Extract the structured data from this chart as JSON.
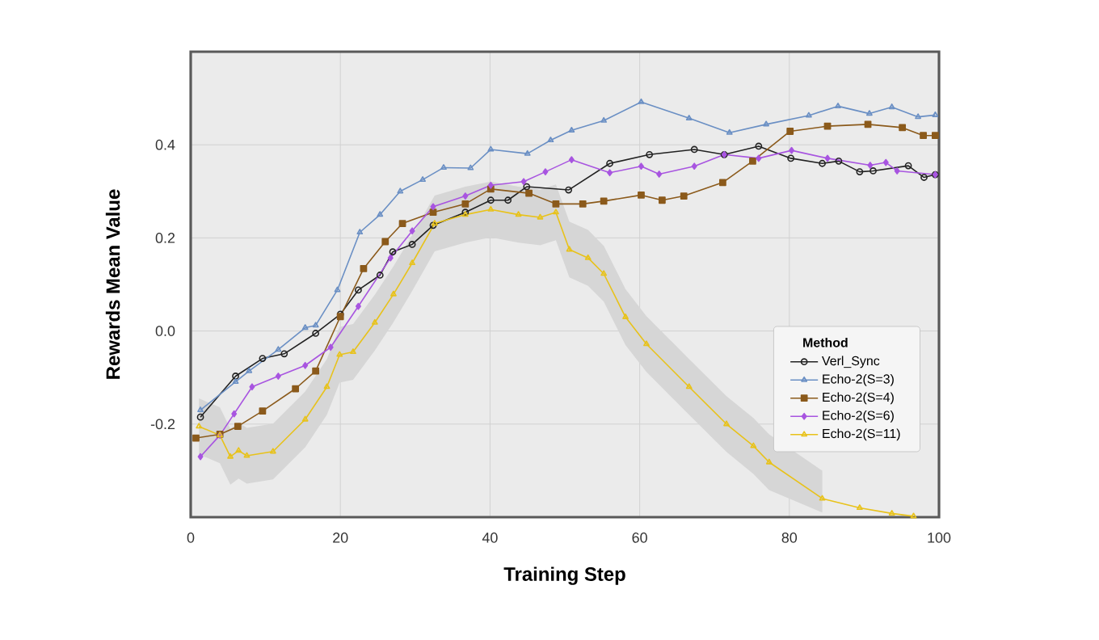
{
  "chart_data": {
    "type": "line",
    "xlabel": "Training Step",
    "ylabel": "Rewards Mean Value",
    "legend_title": "Method",
    "xlim": [
      0,
      100
    ],
    "ylim": [
      -0.4,
      0.6
    ],
    "xticks": [
      0,
      20,
      40,
      60,
      80,
      100
    ],
    "yticks": [
      -0.2,
      {
        "value": 0,
        "label": "0.0"
      },
      0.2,
      0.4
    ],
    "grid": true,
    "legend": "bottom right",
    "line_style": "solid",
    "series": [
      {
        "name": "Verl_Sync",
        "color": "#222222",
        "marker": "circle",
        "x": [
          1.3,
          6,
          9.6,
          12.5,
          16.7,
          20,
          22.4,
          25.3,
          27,
          29.6,
          32.4,
          36.7,
          40.1,
          42.4,
          44.9,
          50.5,
          56,
          61.3,
          67.3,
          71.3,
          75.9,
          80.2,
          84.4,
          86.6,
          89.4,
          91.2,
          95.9,
          98,
          99.5
        ],
        "values": [
          -0.185,
          -0.097,
          -0.059,
          -0.049,
          -0.005,
          0.036,
          0.088,
          0.12,
          0.17,
          0.186,
          0.227,
          0.255,
          0.281,
          0.281,
          0.31,
          0.303,
          0.36,
          0.379,
          0.39,
          0.379,
          0.397,
          0.371,
          0.36,
          0.365,
          0.342,
          0.344,
          0.355,
          0.33,
          0.336
        ]
      },
      {
        "name": "Echo-2(S=3)",
        "color": "#6a8fc4",
        "marker": "triangle",
        "x": [
          1.3,
          6,
          7.8,
          11.7,
          15.3,
          16.7,
          19.6,
          22.6,
          25.3,
          28,
          31,
          33.8,
          37.4,
          40.1,
          45,
          48.1,
          50.9,
          55.2,
          60.2,
          66.6,
          72,
          76.9,
          82.6,
          86.5,
          90.7,
          93.7,
          97.2,
          99.5
        ],
        "values": [
          -0.17,
          -0.109,
          -0.086,
          -0.04,
          0.007,
          0.012,
          0.088,
          0.212,
          0.25,
          0.3,
          0.325,
          0.351,
          0.35,
          0.39,
          0.381,
          0.41,
          0.431,
          0.452,
          0.492,
          0.457,
          0.426,
          0.444,
          0.463,
          0.483,
          0.467,
          0.481,
          0.46,
          0.464
        ]
      },
      {
        "name": "Echo-2(S=4)",
        "color": "#8b5a1b",
        "marker": "square",
        "x": [
          0.7,
          3.9,
          6.3,
          9.6,
          14,
          16.7,
          20,
          23.1,
          26,
          28.3,
          32.4,
          36.7,
          40.1,
          45.2,
          48.8,
          52.4,
          55.2,
          60.2,
          63,
          65.9,
          71.1,
          75.1,
          80.1,
          85.1,
          90.5,
          95.1,
          97.9,
          99.5
        ],
        "values": [
          -0.23,
          -0.222,
          -0.205,
          -0.172,
          -0.124,
          -0.086,
          0.031,
          0.134,
          0.192,
          0.231,
          0.255,
          0.273,
          0.305,
          0.296,
          0.273,
          0.273,
          0.279,
          0.292,
          0.281,
          0.29,
          0.319,
          0.365,
          0.429,
          0.44,
          0.444,
          0.437,
          0.42,
          0.42
        ]
      },
      {
        "name": "Echo-2(S=6)",
        "color": "#a855e0",
        "marker": "diamond",
        "x": [
          1.3,
          3.9,
          5.8,
          8.2,
          11.7,
          15.3,
          18.7,
          22.4,
          26.7,
          29.6,
          32.4,
          36.7,
          40.1,
          44.5,
          47.4,
          50.9,
          56,
          60.2,
          62.6,
          67.3,
          71.3,
          75.9,
          80.3,
          85.1,
          90.8,
          92.9,
          94.4,
          99.5
        ],
        "values": [
          -0.27,
          -0.224,
          -0.178,
          -0.12,
          -0.097,
          -0.074,
          -0.035,
          0.053,
          0.157,
          0.215,
          0.267,
          0.29,
          0.313,
          0.321,
          0.342,
          0.368,
          0.34,
          0.354,
          0.337,
          0.354,
          0.379,
          0.371,
          0.388,
          0.371,
          0.356,
          0.362,
          0.344,
          0.336
        ]
      },
      {
        "name": "Echo-2(S=11)",
        "color": "#e8c21a",
        "marker": "triangle",
        "x": [
          1.1,
          3.9,
          5.3,
          6.4,
          7.5,
          11,
          15.3,
          18.2,
          19.9,
          21.7,
          24.6,
          27.1,
          29.6,
          32.6,
          36.7,
          40.1,
          43.8,
          46.7,
          48.8,
          50.6,
          53.1,
          55.2,
          58.1,
          60.9,
          66.6,
          71.6,
          75.2,
          77.3,
          84.4,
          89.4,
          93.7,
          96.6
        ],
        "values": [
          -0.205,
          -0.224,
          -0.27,
          -0.257,
          -0.268,
          -0.259,
          -0.19,
          -0.12,
          -0.051,
          -0.045,
          0.018,
          0.079,
          0.146,
          0.231,
          0.25,
          0.261,
          0.25,
          0.244,
          0.255,
          0.175,
          0.157,
          0.123,
          0.03,
          -0.028,
          -0.12,
          -0.2,
          -0.247,
          -0.282,
          -0.36,
          -0.38,
          -0.392,
          -0.398
        ],
        "lower": [
          -0.265,
          -0.284,
          -0.33,
          -0.317,
          -0.328,
          -0.319,
          -0.25,
          -0.18,
          -0.111,
          -0.105,
          -0.042,
          0.019,
          0.086,
          0.171,
          0.19,
          0.201,
          0.19,
          0.184,
          0.195,
          0.115,
          0.097,
          0.063,
          -0.03,
          -0.088,
          -0.18,
          -0.26,
          -0.307,
          -0.342,
          -0.39,
          null,
          null,
          null
        ],
        "upper": [
          -0.145,
          -0.164,
          -0.21,
          -0.197,
          -0.208,
          -0.199,
          -0.13,
          -0.06,
          0.009,
          0.015,
          0.078,
          0.139,
          0.206,
          0.291,
          0.31,
          0.321,
          0.31,
          0.304,
          0.315,
          0.235,
          0.217,
          0.183,
          0.09,
          0.032,
          -0.06,
          -0.14,
          -0.187,
          -0.222,
          -0.3,
          null,
          null,
          null
        ]
      }
    ]
  }
}
